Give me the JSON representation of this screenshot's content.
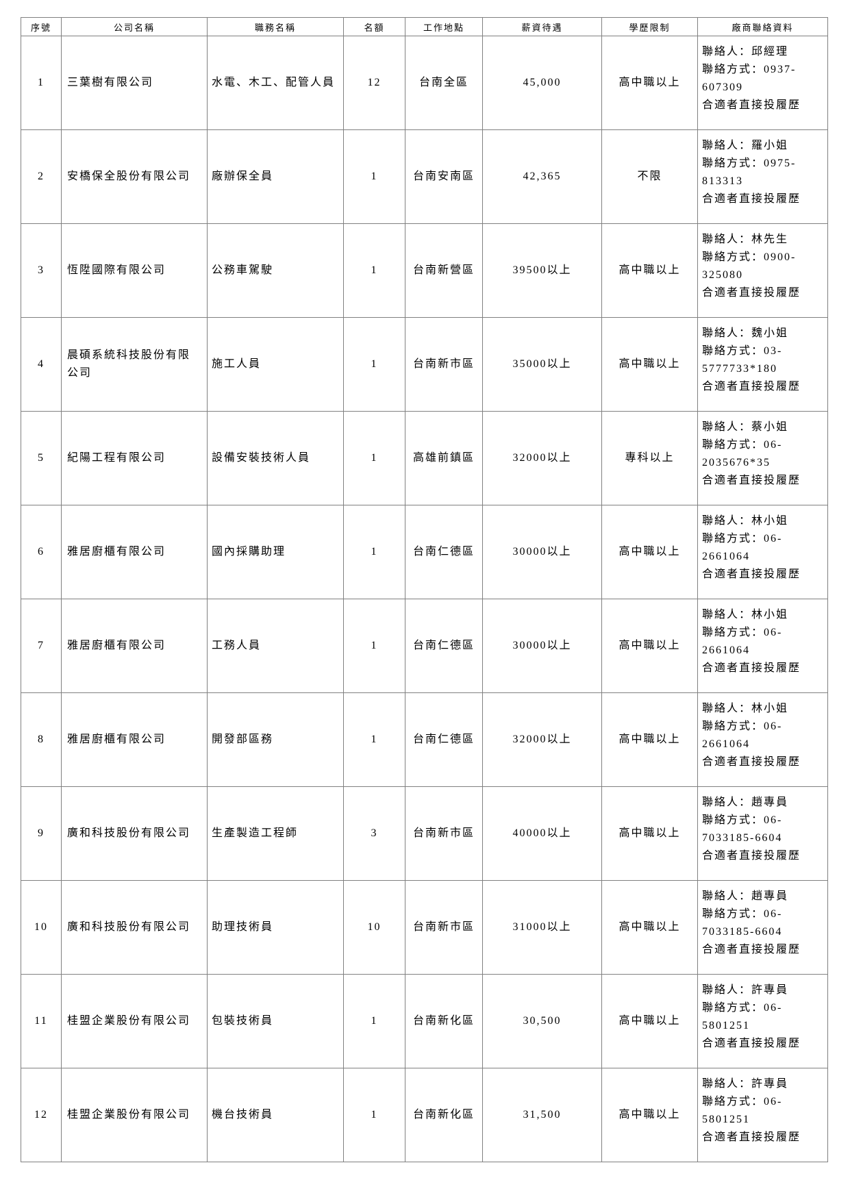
{
  "colors": {
    "background": "#ffffff",
    "border": "#808080",
    "text": "#000000"
  },
  "table": {
    "columns": [
      {
        "key": "no",
        "label": "序號"
      },
      {
        "key": "company",
        "label": "公司名稱"
      },
      {
        "key": "job",
        "label": "職務名稱"
      },
      {
        "key": "quota",
        "label": "名額"
      },
      {
        "key": "location",
        "label": "工作地點"
      },
      {
        "key": "salary",
        "label": "薪資待遇"
      },
      {
        "key": "education",
        "label": "學歷限制"
      },
      {
        "key": "contact",
        "label": "廠商聯絡資料"
      }
    ],
    "rows": [
      {
        "no": "1",
        "company": "三葉樹有限公司",
        "job": "水電、木工、配管人員",
        "quota": "12",
        "location": "台南全區",
        "salary": "45,000",
        "education": "高中職以上",
        "contact": "聯絡人：邱經理\n聯絡方式：0937-607309\n合適者直接投履歷"
      },
      {
        "no": "2",
        "company": "安橋保全股份有限公司",
        "job": "廠辦保全員",
        "quota": "1",
        "location": "台南安南區",
        "salary": "42,365",
        "education": "不限",
        "contact": "聯絡人：羅小姐\n聯絡方式：0975-813313\n合適者直接投履歷"
      },
      {
        "no": "3",
        "company": "恆陞國際有限公司",
        "job": "公務車駕駛",
        "quota": "1",
        "location": "台南新營區",
        "salary": "39500以上",
        "education": "高中職以上",
        "contact": "聯絡人：林先生\n聯絡方式：0900-325080\n合適者直接投履歷"
      },
      {
        "no": "4",
        "company": "晨碩系統科技股份有限公司",
        "job": "施工人員",
        "quota": "1",
        "location": "台南新市區",
        "salary": "35000以上",
        "education": "高中職以上",
        "contact": "聯絡人：魏小姐\n聯絡方式：03-5777733*180\n合適者直接投履歷"
      },
      {
        "no": "5",
        "company": "紀陽工程有限公司",
        "job": "設備安裝技術人員",
        "quota": "1",
        "location": "高雄前鎮區",
        "salary": "32000以上",
        "education": "專科以上",
        "contact": "聯絡人：蔡小姐\n聯絡方式：06-2035676*35\n合適者直接投履歷"
      },
      {
        "no": "6",
        "company": "雅居廚櫃有限公司",
        "job": "國內採購助理",
        "quota": "1",
        "location": "台南仁德區",
        "salary": "30000以上",
        "education": "高中職以上",
        "contact": "聯絡人：林小姐\n聯絡方式：06-2661064\n合適者直接投履歷"
      },
      {
        "no": "7",
        "company": "雅居廚櫃有限公司",
        "job": "工務人員",
        "quota": "1",
        "location": "台南仁德區",
        "salary": "30000以上",
        "education": "高中職以上",
        "contact": "聯絡人：林小姐\n聯絡方式：06-2661064\n合適者直接投履歷"
      },
      {
        "no": "8",
        "company": "雅居廚櫃有限公司",
        "job": "開發部區務",
        "quota": "1",
        "location": "台南仁德區",
        "salary": "32000以上",
        "education": "高中職以上",
        "contact": "聯絡人：林小姐\n聯絡方式：06-2661064\n合適者直接投履歷"
      },
      {
        "no": "9",
        "company": "廣和科技股份有限公司",
        "job": "生產製造工程師",
        "quota": "3",
        "location": "台南新市區",
        "salary": "40000以上",
        "education": "高中職以上",
        "contact": "聯絡人：趙專員\n聯絡方式：06-7033185-6604\n合適者直接投履歷"
      },
      {
        "no": "10",
        "company": "廣和科技股份有限公司",
        "job": "助理技術員",
        "quota": "10",
        "location": "台南新市區",
        "salary": "31000以上",
        "education": "高中職以上",
        "contact": "聯絡人：趙專員\n聯絡方式：06-7033185-6604\n合適者直接投履歷"
      },
      {
        "no": "11",
        "company": "桂盟企業股份有限公司",
        "job": "包裝技術員",
        "quota": "1",
        "location": "台南新化區",
        "salary": "30,500",
        "education": "高中職以上",
        "contact": "聯絡人：許專員\n聯絡方式：06-5801251\n合適者直接投履歷"
      },
      {
        "no": "12",
        "company": "桂盟企業股份有限公司",
        "job": "機台技術員",
        "quota": "1",
        "location": "台南新化區",
        "salary": "31,500",
        "education": "高中職以上",
        "contact": "聯絡人：許專員\n聯絡方式：06-5801251\n合適者直接投履歷"
      }
    ]
  }
}
